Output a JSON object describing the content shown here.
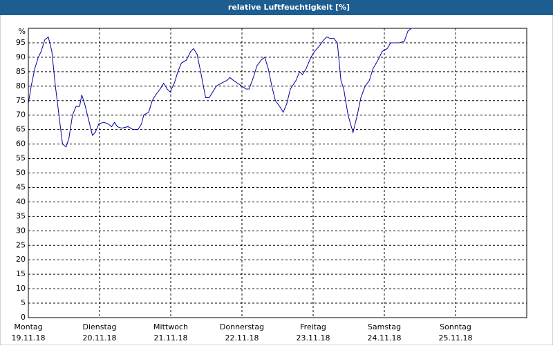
{
  "chart_data": {
    "type": "line",
    "title": "relative Luftfeuchtigkeit [%]",
    "x": [
      0,
      0.04,
      0.09,
      0.14,
      0.18,
      0.23,
      0.28,
      0.33,
      0.38,
      0.43,
      0.48,
      0.53,
      0.57,
      0.62,
      0.67,
      0.72,
      0.75,
      0.79,
      0.83,
      0.86,
      0.9,
      0.94,
      0.99,
      1.06,
      1.12,
      1.17,
      1.21,
      1.25,
      1.31,
      1.4,
      1.47,
      1.54,
      1.59,
      1.62,
      1.69,
      1.74,
      1.79,
      1.85,
      1.9,
      1.95,
      1.99,
      2.05,
      2.1,
      2.15,
      2.22,
      2.28,
      2.32,
      2.37,
      2.42,
      2.49,
      2.54,
      2.59,
      2.64,
      2.71,
      2.79,
      2.83,
      2.88,
      2.94,
      3.0,
      3.06,
      3.1,
      3.16,
      3.21,
      3.27,
      3.32,
      3.37,
      3.42,
      3.47,
      3.53,
      3.58,
      3.63,
      3.68,
      3.76,
      3.81,
      3.85,
      3.9,
      3.97,
      4.02,
      4.09,
      4.15,
      4.19,
      4.24,
      4.29,
      4.34,
      4.39,
      4.43,
      4.49,
      4.56,
      4.62,
      4.67,
      4.73,
      4.79,
      4.84,
      4.91,
      4.97,
      5.04,
      5.09,
      5.14,
      5.21,
      5.28,
      5.33,
      5.38,
      5.41
    ],
    "series": [
      {
        "name": "relative Luftfeuchtigkeit",
        "color": "#0000a0",
        "values": [
          74,
          80,
          86,
          90,
          92,
          96,
          97,
          92,
          80,
          70,
          60,
          59,
          62,
          70,
          73,
          73,
          77,
          74,
          70,
          67,
          63,
          64,
          67,
          67.5,
          67,
          66,
          67.5,
          66,
          65.5,
          66,
          65,
          65,
          67,
          70,
          71,
          75,
          77,
          79,
          81,
          79,
          78,
          81,
          85,
          88,
          89,
          92,
          93,
          91,
          85,
          76,
          76,
          78,
          80,
          81,
          82,
          83,
          82,
          81,
          80,
          79,
          79,
          83,
          87,
          89,
          90,
          86,
          80,
          75,
          73,
          71,
          74,
          79,
          82,
          85,
          84,
          86,
          90,
          92,
          94,
          96,
          97,
          96.5,
          96.5,
          95,
          82,
          79,
          70,
          64,
          70,
          76,
          80,
          82,
          86,
          89,
          92,
          93,
          95,
          95,
          95,
          95.5,
          99,
          100,
          100
        ]
      }
    ],
    "xlim": [
      0,
      7
    ],
    "xticks": [
      {
        "value": 0,
        "label": "Montag"
      },
      {
        "value": 1,
        "label": "Dienstag"
      },
      {
        "value": 2,
        "label": "Mittwoch"
      },
      {
        "value": 3,
        "label": "Donnerstag"
      },
      {
        "value": 4,
        "label": "Freitag"
      },
      {
        "value": 5,
        "label": "Samstag"
      },
      {
        "value": 6,
        "label": "Sonntag"
      }
    ],
    "xtick_dates": [
      "19.11.18",
      "20.11.18",
      "21.11.18",
      "22.11.18",
      "23.11.18",
      "24.11.18",
      "25.11.18"
    ],
    "ylim": [
      0,
      100
    ],
    "yticks": [
      0,
      5,
      10,
      15,
      20,
      25,
      30,
      35,
      40,
      45,
      50,
      55,
      60,
      65,
      70,
      75,
      80,
      85,
      90,
      95,
      {
        "value": 100,
        "label": "%"
      }
    ],
    "grid": true
  }
}
